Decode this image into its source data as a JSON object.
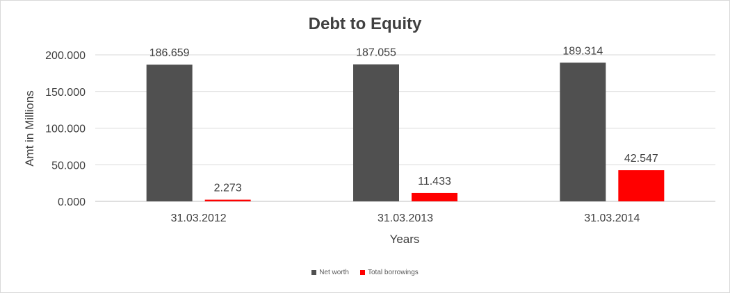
{
  "chart_data": {
    "type": "bar",
    "title": "Debt to Equity",
    "xlabel": "Years",
    "ylabel": "Amt in Millions",
    "categories": [
      "31.03.2012",
      "31.03.2013",
      "31.03.2014"
    ],
    "series": [
      {
        "name": "Net worth",
        "color": "#505050",
        "values": [
          186.659,
          187.055,
          189.314
        ],
        "labels": [
          "186.659",
          "187.055",
          "189.314"
        ]
      },
      {
        "name": "Total borrowings",
        "color": "#ff0000",
        "values": [
          2.273,
          11.433,
          42.547
        ],
        "labels": [
          "2.273",
          "11.433",
          "42.547"
        ]
      }
    ],
    "yticks": [
      0,
      50,
      100,
      150,
      200
    ],
    "ytick_labels": [
      "0.000",
      "50.000",
      "100.000",
      "150.000",
      "200.000"
    ],
    "ylim": [
      0,
      200
    ],
    "grid": true,
    "legend_position": "bottom"
  }
}
